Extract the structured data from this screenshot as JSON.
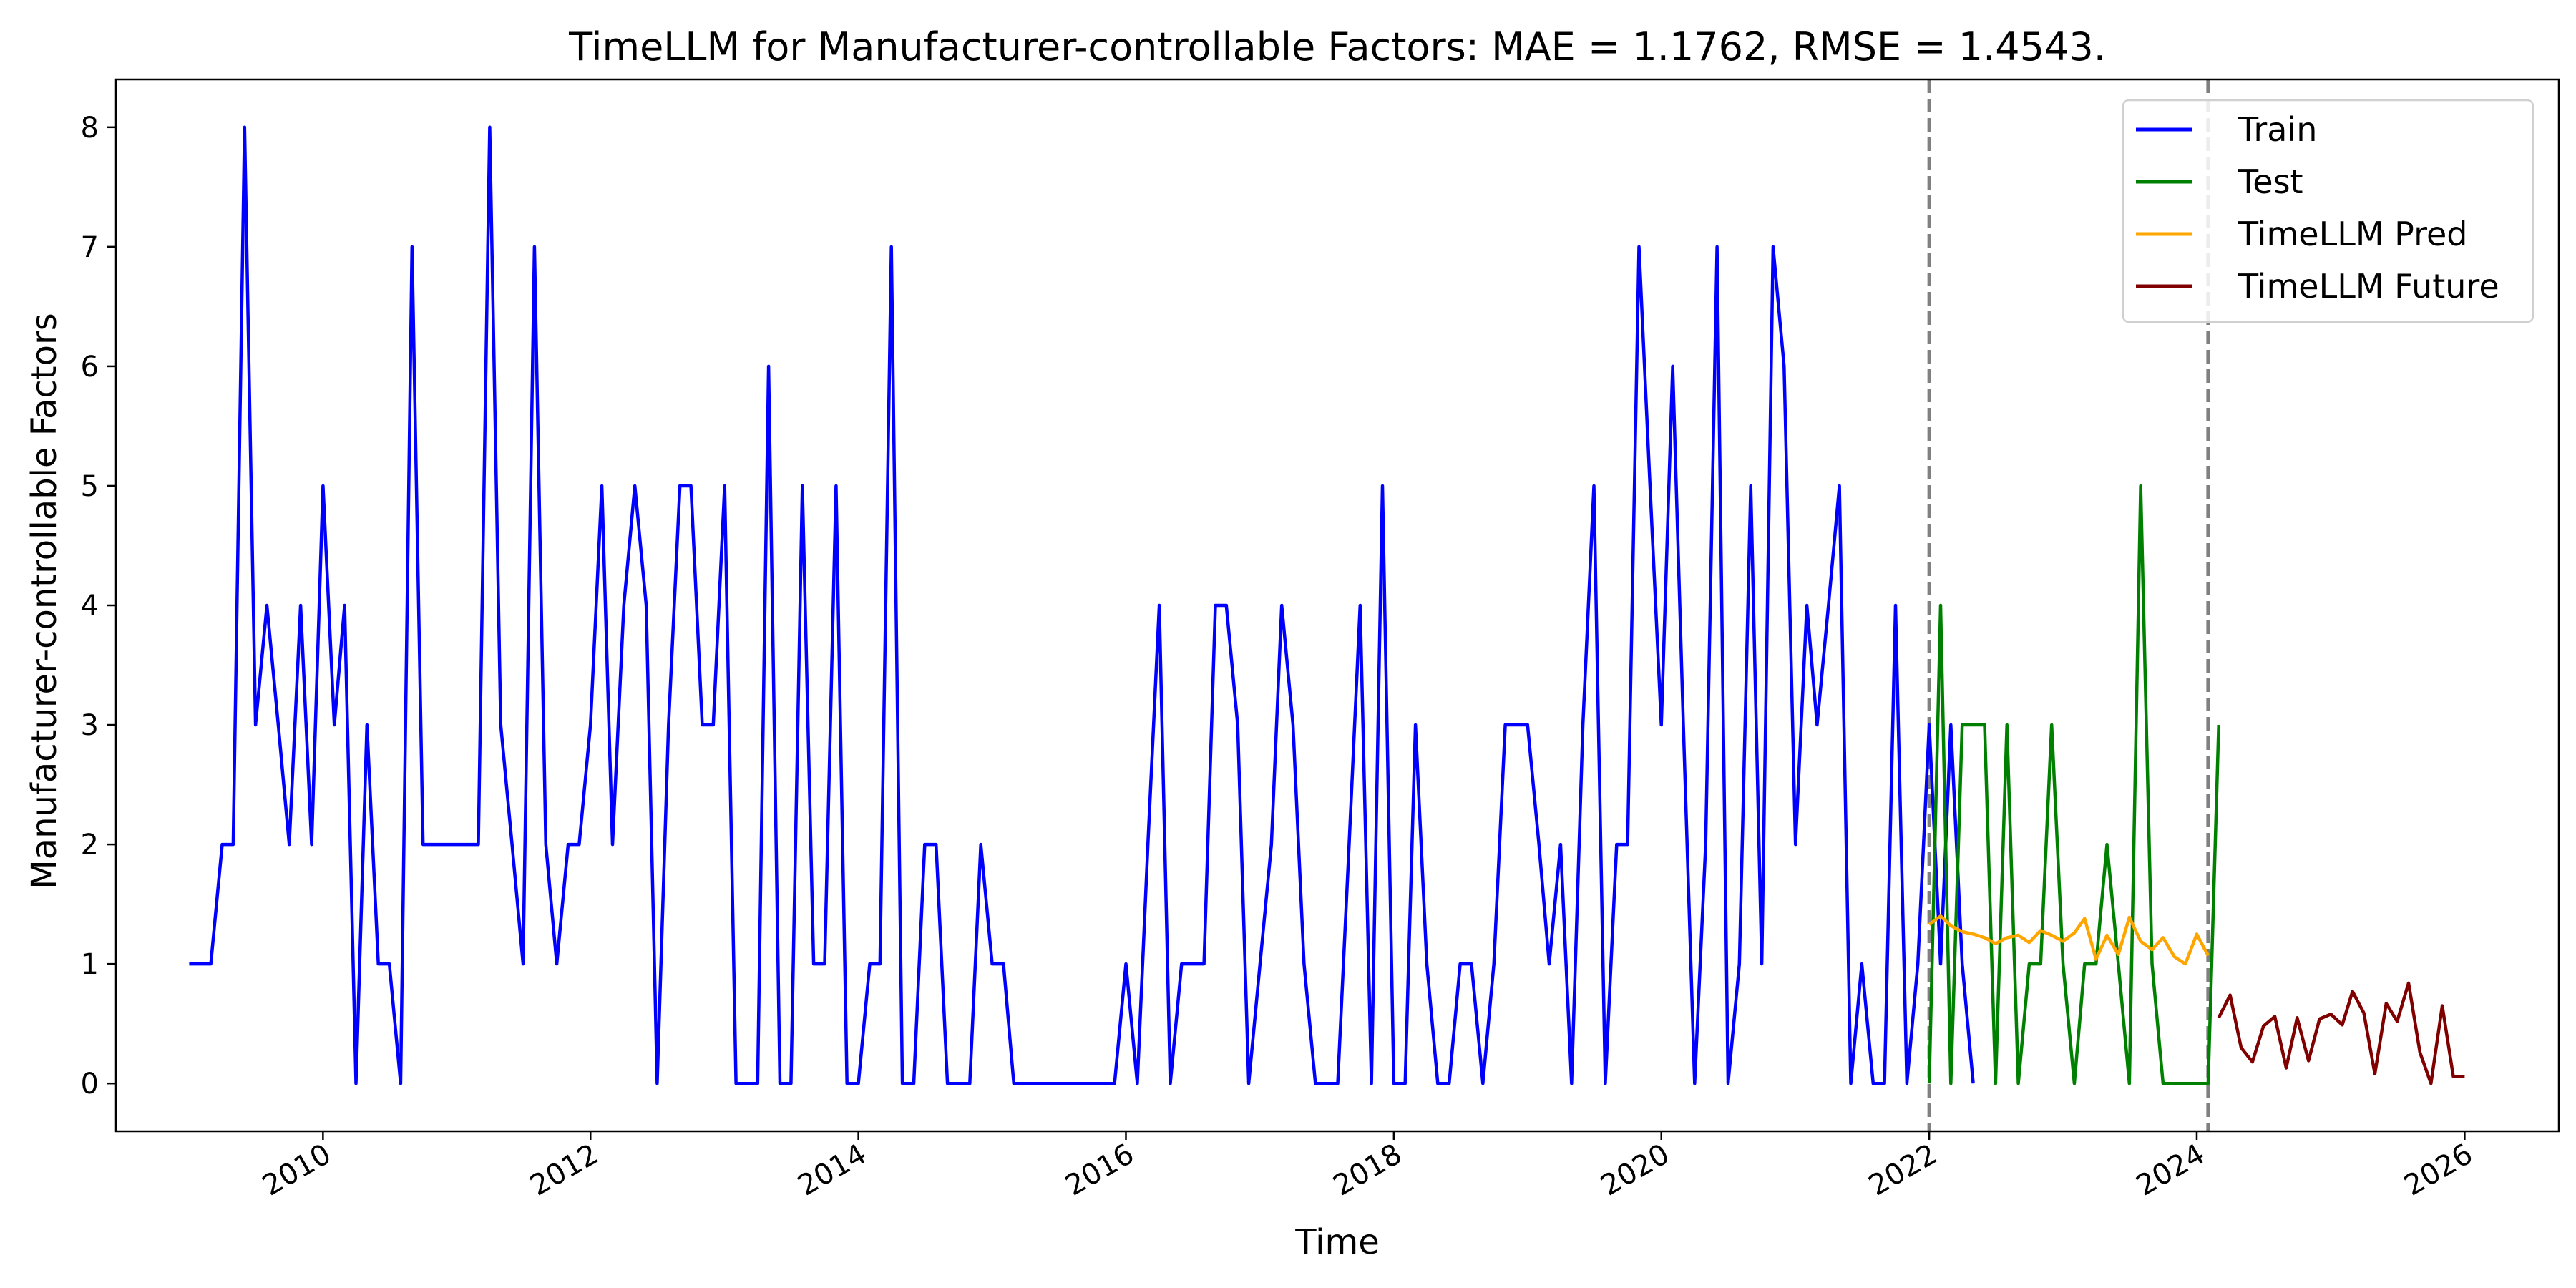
{
  "chart_data": {
    "type": "line",
    "title": "TimeLLM for Manufacturer-controllable Factors: MAE = 1.1762, RMSE = 1.4543.",
    "xlabel": "Time",
    "ylabel": "Manufacturer-controllable Factors",
    "ylim": [
      -0.4,
      8.4
    ],
    "xlim": [
      "2008-06-15",
      "2026-09-15"
    ],
    "y_ticks": [
      0,
      1,
      2,
      3,
      4,
      5,
      6,
      7,
      8
    ],
    "x_ticks": [
      "2010",
      "2012",
      "2014",
      "2016",
      "2018",
      "2020",
      "2022",
      "2024",
      "2026"
    ],
    "grid": false,
    "legend_position": "top-right",
    "vertical_lines": [
      {
        "x": "2022-01-01",
        "style": "dashed",
        "color": "#808080"
      },
      {
        "x": "2024-02-01",
        "style": "dashed",
        "color": "#808080"
      }
    ],
    "series": [
      {
        "name": "Train",
        "color": "#0000ff",
        "start": "2009-01",
        "values": [
          1,
          1,
          1,
          2,
          2,
          8,
          3,
          4,
          3,
          2,
          4,
          2,
          5,
          3,
          4,
          0,
          3,
          1,
          1,
          0,
          7,
          2,
          2,
          2,
          2,
          2,
          2,
          8,
          3,
          2,
          1,
          7,
          2,
          1,
          2,
          2,
          3,
          5,
          2,
          4,
          5,
          4,
          0,
          3,
          5,
          5,
          3,
          3,
          5,
          0,
          0,
          0,
          6,
          0,
          0,
          5,
          1,
          1,
          5,
          0,
          0,
          1,
          1,
          7,
          0,
          0,
          2,
          2,
          0,
          0,
          0,
          2,
          1,
          1,
          0,
          0,
          0,
          0,
          0,
          0,
          0,
          0,
          0,
          0,
          1,
          0,
          2,
          4,
          0,
          1,
          1,
          1,
          4,
          4,
          3,
          0,
          1,
          2,
          4,
          3,
          1,
          0,
          0,
          0,
          2,
          4,
          0,
          5,
          0,
          0,
          3,
          1,
          0,
          0,
          1,
          1,
          0,
          1,
          3,
          3,
          3,
          2,
          1,
          2,
          0,
          3,
          5,
          0,
          2,
          2,
          7,
          5,
          3,
          6,
          3,
          0,
          2,
          7,
          0,
          1,
          5,
          1,
          7,
          6,
          2,
          4,
          3,
          4,
          5,
          0,
          1,
          0,
          0,
          4,
          0,
          1,
          3,
          1,
          3,
          1,
          0
        ]
      },
      {
        "name": "Test",
        "color": "#008000",
        "start": "2022-01",
        "values": [
          0,
          4,
          0,
          3,
          3,
          3,
          0,
          3,
          0,
          1,
          1,
          3,
          1,
          0,
          1,
          1,
          2,
          1,
          0,
          5,
          1,
          0,
          0,
          0,
          0,
          0,
          3
        ]
      },
      {
        "name": "TimeLLM Pred",
        "color": "#ffa500",
        "start": "2022-01",
        "values": [
          1.33,
          1.4,
          1.32,
          1.27,
          1.25,
          1.22,
          1.17,
          1.22,
          1.24,
          1.18,
          1.28,
          1.24,
          1.19,
          1.26,
          1.38,
          1.04,
          1.24,
          1.08,
          1.39,
          1.19,
          1.12,
          1.22,
          1.06,
          1.0,
          1.25,
          1.07
        ]
      },
      {
        "name": "TimeLLM Future",
        "color": "#800000",
        "start": "2024-03",
        "values": [
          0.55,
          0.74,
          0.3,
          0.18,
          0.48,
          0.56,
          0.13,
          0.55,
          0.19,
          0.54,
          0.58,
          0.49,
          0.77,
          0.59,
          0.08,
          0.67,
          0.52,
          0.84,
          0.26,
          0.0,
          0.65,
          0.06,
          0.06
        ]
      }
    ]
  }
}
